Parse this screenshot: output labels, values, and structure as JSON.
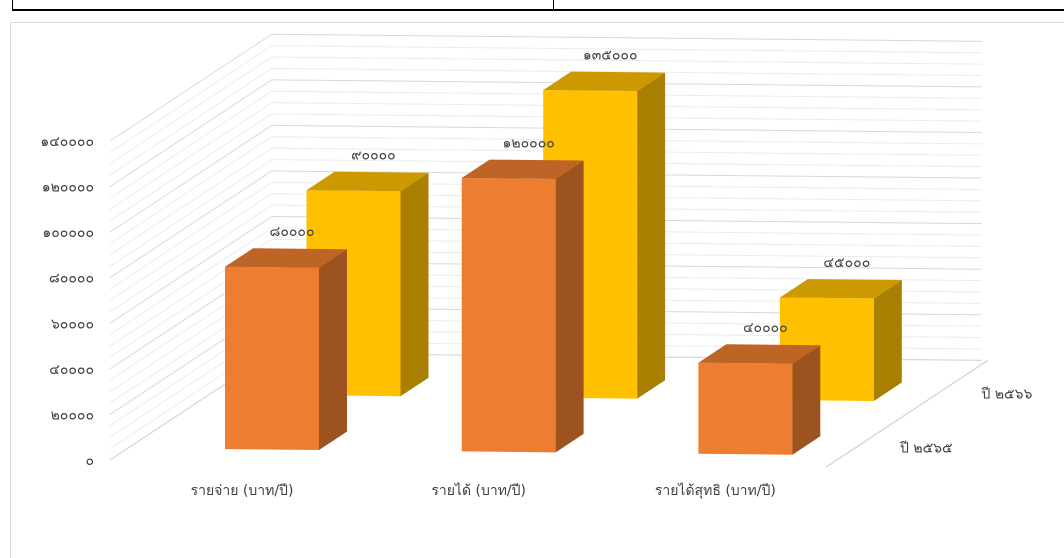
{
  "chart_data": {
    "type": "bar",
    "categories": [
      "รายจ่าย (บาท/ปี)",
      "รายได้ (บาท/ปี)",
      "รายได้สุทธิ (บาท/ปี)"
    ],
    "series": [
      {
        "name": "ปี ๒๕๖๕",
        "values": [
          80000,
          120000,
          40000
        ],
        "labels": [
          "๘๐๐๐๐",
          "๑๒๐๐๐๐",
          "๔๐๐๐๐"
        ],
        "color": "#ED7D31"
      },
      {
        "name": "ปี ๒๕๖๖",
        "values": [
          90000,
          135000,
          45000
        ],
        "labels": [
          "๙๐๐๐๐",
          "๑๓๕๐๐๐",
          "๔๕๐๐๐"
        ],
        "color": "#FFC000"
      }
    ],
    "y_ticks": [
      "๐",
      "๒๐๐๐๐",
      "๔๐๐๐๐",
      "๖๐๐๐๐",
      "๘๐๐๐๐",
      "๑๐๐๐๐๐",
      "๑๒๐๐๐๐",
      "๑๔๐๐๐๐"
    ],
    "ylim": [
      0,
      140000
    ],
    "grid": true,
    "title": "",
    "xlabel": "",
    "ylabel": ""
  }
}
